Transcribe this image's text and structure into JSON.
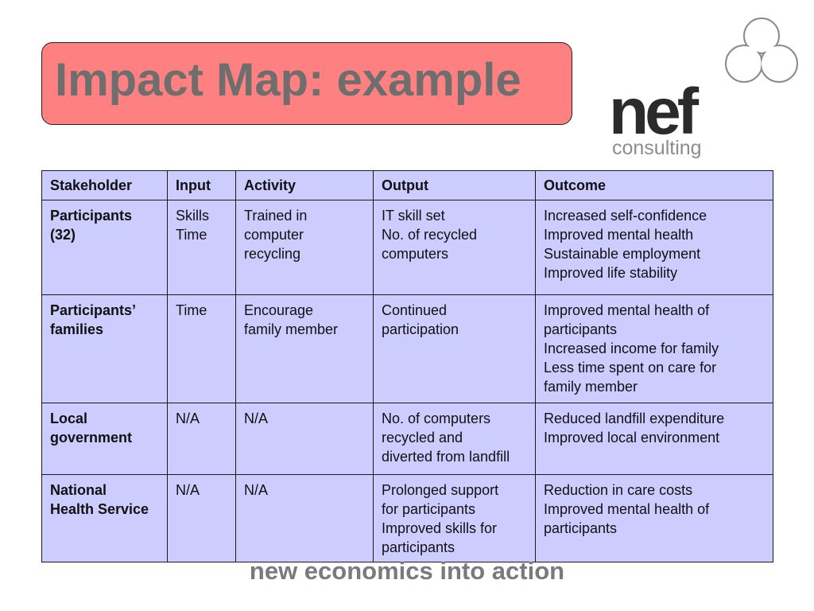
{
  "title": "Impact Map: example",
  "logo": {
    "word": "nef",
    "sub": "consulting"
  },
  "table": {
    "headers": [
      "Stakeholder",
      "Input",
      "Activity",
      "Output",
      "Outcome"
    ],
    "rows": [
      {
        "stakeholder": [
          "Participants",
          "(32)"
        ],
        "input": [
          "Skills",
          "Time"
        ],
        "activity": [
          "Trained in",
          "computer",
          "recycling"
        ],
        "output": [
          "IT skill set",
          "No. of recycled",
          "computers"
        ],
        "outcome": [
          "Increased self-confidence",
          "Improved mental health",
          "Sustainable employment",
          "Improved life stability"
        ]
      },
      {
        "stakeholder": [
          "Participants’",
          "families"
        ],
        "input": [
          "Time"
        ],
        "activity": [
          "Encourage",
          "family member"
        ],
        "output": [
          "Continued",
          "participation"
        ],
        "outcome": [
          "Improved mental health of",
          "participants",
          "Increased income for family",
          "Less time spent on care for",
          "family member"
        ]
      },
      {
        "stakeholder": [
          "Local",
          "government"
        ],
        "input": [
          "N/A"
        ],
        "activity": [
          "N/A"
        ],
        "output": [
          "No. of computers",
          "recycled and",
          "diverted from landfill"
        ],
        "outcome": [
          "Reduced landfill expenditure",
          "Improved local environment"
        ]
      },
      {
        "stakeholder": [
          "National",
          "Health Service"
        ],
        "input": [
          "N/A"
        ],
        "activity": [
          "N/A"
        ],
        "output": [
          "Prolonged support",
          "for participants",
          "Improved skills for",
          "participants"
        ],
        "outcome": [
          "Reduction in care costs",
          "Improved mental health of",
          "participants"
        ]
      }
    ]
  },
  "footer": "new economics into action",
  "colors": {
    "title_bg": "#ff8080",
    "table_bg": "#ccccff",
    "title_text": "#6e6e6e",
    "footer_text": "#7a7a7a"
  }
}
